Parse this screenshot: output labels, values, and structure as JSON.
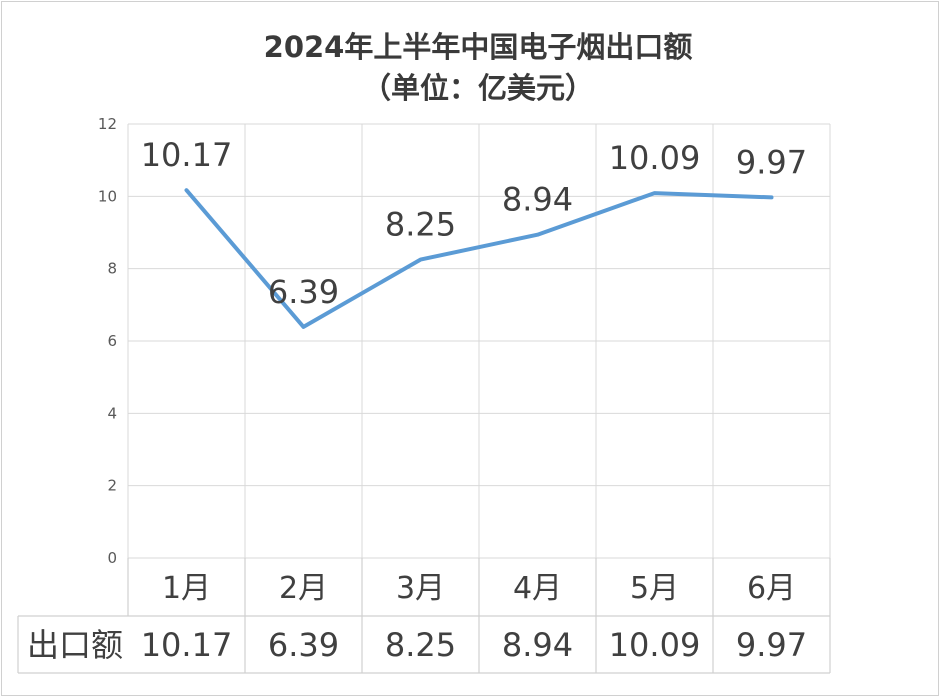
{
  "chart_data": {
    "type": "line",
    "title_line1": "2024年上半年中国电子烟出口额",
    "title_line2": "（单位：亿美元）",
    "categories": [
      "1月",
      "2月",
      "3月",
      "4月",
      "5月",
      "6月"
    ],
    "series": [
      {
        "name": "出口额",
        "values": [
          10.17,
          6.39,
          8.25,
          8.94,
          10.09,
          9.97
        ]
      }
    ],
    "data_labels": [
      "10.17",
      "6.39",
      "8.25",
      "8.94",
      "10.09",
      "9.97"
    ],
    "ylim": [
      0,
      12
    ],
    "yticks": [
      "0",
      "2",
      "4",
      "6",
      "8",
      "10",
      "12"
    ],
    "grid": true,
    "data_table": true,
    "line_color": "#5b9bd5"
  }
}
